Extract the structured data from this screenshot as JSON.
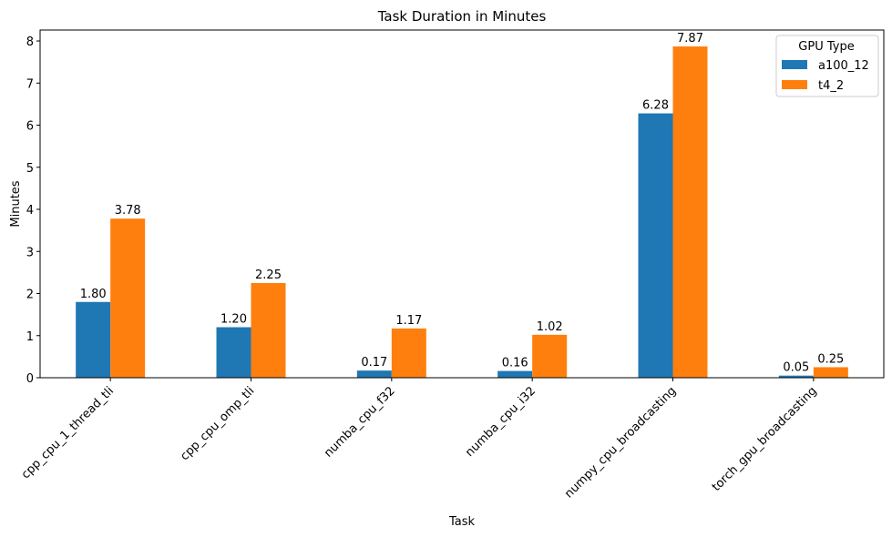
{
  "chart_data": {
    "type": "bar",
    "title": "Task Duration in Minutes",
    "xlabel": "Task",
    "ylabel": "Minutes",
    "categories": [
      "cpp_cpu_1_thread_tli",
      "cpp_cpu_omp_tli",
      "numba_cpu_f32",
      "numba_cpu_i32",
      "numpy_cpu_broadcasting",
      "torch_gpu_broadcasting"
    ],
    "series": [
      {
        "name": "a100_12",
        "color": "#1f77b4",
        "values": [
          1.8,
          1.2,
          0.17,
          0.16,
          6.28,
          0.05
        ],
        "labels": [
          "1.80",
          "1.20",
          "0.17",
          "0.16",
          "6.28",
          "0.05"
        ]
      },
      {
        "name": "t4_2",
        "color": "#ff7f0e",
        "values": [
          3.78,
          2.25,
          1.17,
          1.02,
          7.87,
          0.25
        ],
        "labels": [
          "3.78",
          "2.25",
          "1.17",
          "1.02",
          "7.87",
          "0.25"
        ]
      }
    ],
    "ylim": [
      0,
      8.26
    ],
    "yticks": [
      "0",
      "1",
      "2",
      "3",
      "4",
      "5",
      "6",
      "7",
      "8"
    ],
    "grid": false,
    "legend": {
      "title": "GPU Type",
      "position": "top-right"
    }
  }
}
